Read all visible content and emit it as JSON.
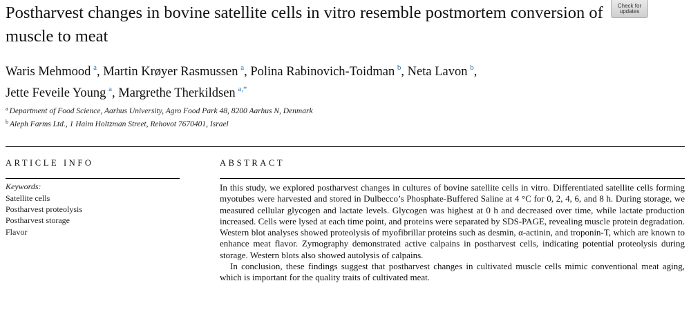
{
  "title": "Postharvest changes in bovine satellite cells in vitro resemble postmortem conversion of muscle to meat",
  "check_updates": {
    "line1": "Check for",
    "line2": "updates"
  },
  "authors": [
    {
      "name": "Waris Mehmood",
      "aff": "a"
    },
    {
      "name": "Martin Krøyer Rasmussen",
      "aff": "a"
    },
    {
      "name": "Polina Rabinovich-Toidman",
      "aff": "b"
    },
    {
      "name": "Neta Lavon",
      "aff": "b"
    },
    {
      "name": "Jette Feveile Young",
      "aff": "a"
    },
    {
      "name": "Margrethe Therkildsen",
      "aff": "a,*"
    }
  ],
  "affiliations": [
    {
      "mark": "a",
      "text": "Department of Food Science, Aarhus University, Agro Food Park 48, 8200 Aarhus N, Denmark"
    },
    {
      "mark": "b",
      "text": "Aleph Farms Ltd., 1 Haim Holtzman Street, Rehovot 7670401, Israel"
    }
  ],
  "article_info": {
    "heading": "ARTICLE INFO",
    "keywords_label": "Keywords:",
    "keywords": [
      "Satellite cells",
      "Postharvest proteolysis",
      "Postharvest storage",
      "Flavor"
    ]
  },
  "abstract": {
    "heading": "ABSTRACT",
    "paragraph1": "In this study, we explored postharvest changes in cultures of bovine satellite cells in vitro. Differentiated satellite cells forming myotubes were harvested and stored in Dulbecco’s Phosphate-Buffered Saline at 4 °C for 0, 2, 4, 6, and 8 h. During storage, we measured cellular glycogen and lactate levels. Glycogen was highest at 0 h and decreased over time, while lactate production increased. Cells were lysed at each time point, and proteins were separated by SDS-PAGE, revealing muscle protein degradation. Western blot analyses showed proteolysis of myofibrillar proteins such as desmin, α-actinin, and troponin-T, which are known to enhance meat flavor. Zymography demonstrated active calpains in postharvest cells, indicating potential proteolysis during storage. Western blots also showed autolysis of calpains.",
    "paragraph2": "In conclusion, these findings suggest that postharvest changes in cultivated muscle cells mimic conventional meat aging, which is important for the quality traits of cultivated meat."
  }
}
